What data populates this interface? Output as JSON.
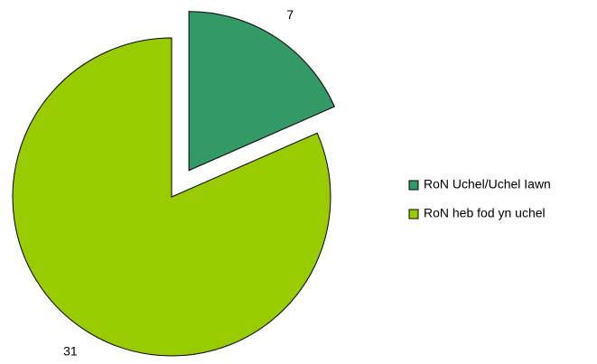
{
  "chart_data": {
    "type": "pie",
    "categories": [
      "RoN Uchel/Uchel Iawn",
      "RoN heb fod yn uchel"
    ],
    "values": [
      7,
      31
    ],
    "colors": [
      "#339966",
      "#99cc00"
    ],
    "legend": "right"
  }
}
